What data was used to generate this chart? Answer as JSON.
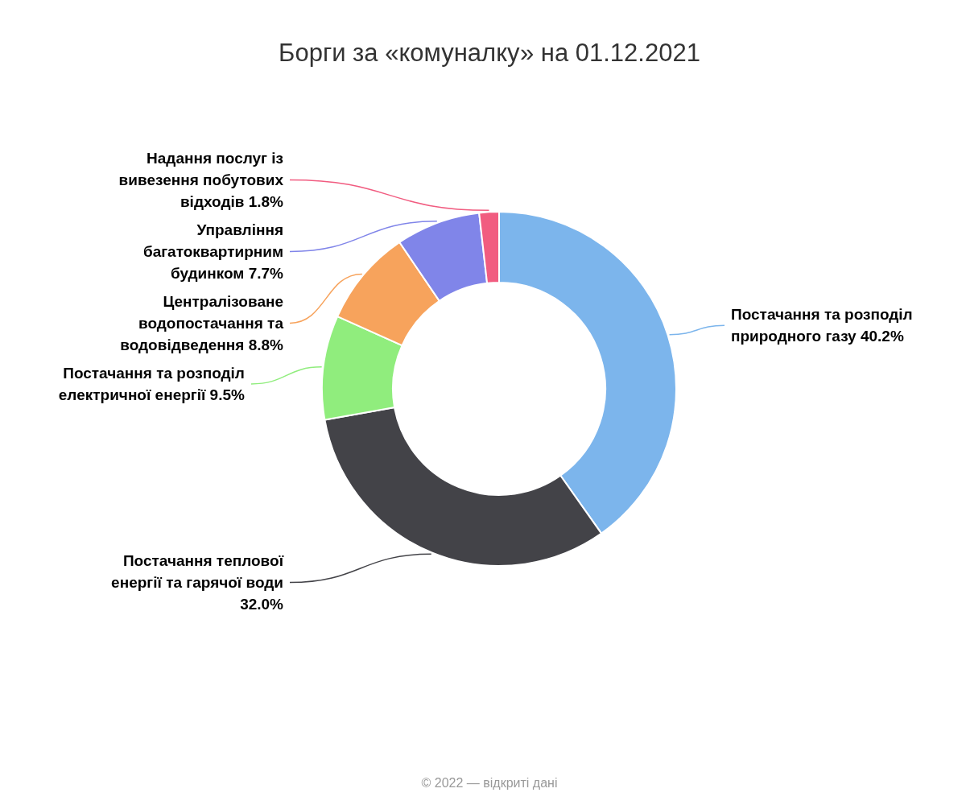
{
  "chart_data": {
    "type": "donut",
    "title": "Борги за «комуналку» на 01.12.2021",
    "categories": [
      "Постачання та розподіл природного газу",
      "Постачання теплової енергії та гарячої води",
      "Постачання та розподіл електричної енергії",
      "Централізоване водопостачання та водовідведення",
      "Управління багатоквартирним будинком",
      "Надання послуг із вивезення побутових відходів"
    ],
    "values": [
      40.2,
      32.0,
      9.5,
      8.8,
      7.7,
      1.8
    ],
    "value_labels": [
      "40.2%",
      "32.0%",
      "9.5%",
      "8.8%",
      "7.7%",
      "1.8%"
    ],
    "colors": [
      "#7cb5ec",
      "#434348",
      "#90ed7d",
      "#f7a35c",
      "#8085e9",
      "#f15c80"
    ],
    "annotations": [
      "© 2022 — відкриті дані"
    ]
  }
}
